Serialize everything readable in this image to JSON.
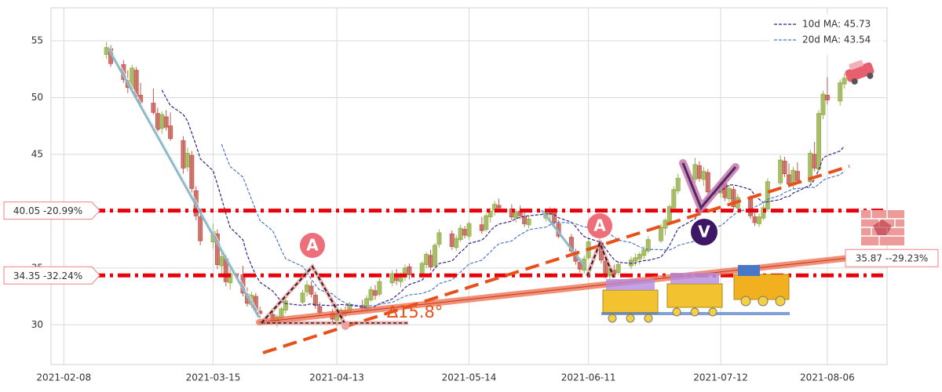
{
  "chart_data": {
    "type": "candlestick",
    "x": [
      "2021-02-18",
      "2021-02-19",
      "2021-02-22",
      "2021-02-23",
      "2021-02-24",
      "2021-02-25",
      "2021-02-26",
      "2021-03-01",
      "2021-03-02",
      "2021-03-03",
      "2021-03-04",
      "2021-03-05",
      "2021-03-08",
      "2021-03-09",
      "2021-03-10",
      "2021-03-11",
      "2021-03-12",
      "2021-03-15",
      "2021-03-16",
      "2021-03-17",
      "2021-03-18",
      "2021-03-19",
      "2021-03-22",
      "2021-03-23",
      "2021-03-24",
      "2021-03-25",
      "2021-03-26",
      "2021-03-29",
      "2021-03-30",
      "2021-03-31",
      "2021-04-01",
      "2021-04-05",
      "2021-04-06",
      "2021-04-07",
      "2021-04-08",
      "2021-04-09",
      "2021-04-12",
      "2021-04-13",
      "2021-04-14",
      "2021-04-15",
      "2021-04-16",
      "2021-04-19",
      "2021-04-20",
      "2021-04-21",
      "2021-04-22",
      "2021-04-23",
      "2021-04-26",
      "2021-04-27",
      "2021-04-28",
      "2021-04-29",
      "2021-04-30",
      "2021-05-03",
      "2021-05-04",
      "2021-05-05",
      "2021-05-06",
      "2021-05-07",
      "2021-05-10",
      "2021-05-11",
      "2021-05-12",
      "2021-05-13",
      "2021-05-14",
      "2021-05-17",
      "2021-05-18",
      "2021-05-19",
      "2021-05-20",
      "2021-05-21",
      "2021-05-24",
      "2021-05-25",
      "2021-05-26",
      "2021-05-27",
      "2021-05-28",
      "2021-06-01",
      "2021-06-02",
      "2021-06-03",
      "2021-06-04",
      "2021-06-07",
      "2021-06-08",
      "2021-06-09",
      "2021-06-10",
      "2021-06-11",
      "2021-06-14",
      "2021-06-15",
      "2021-06-16",
      "2021-06-17",
      "2021-06-18",
      "2021-06-21",
      "2021-06-22",
      "2021-06-23",
      "2021-06-24",
      "2021-06-25",
      "2021-06-28",
      "2021-06-29",
      "2021-06-30",
      "2021-07-01",
      "2021-07-02",
      "2021-07-06",
      "2021-07-07",
      "2021-07-08",
      "2021-07-09",
      "2021-07-12",
      "2021-07-13",
      "2021-07-14",
      "2021-07-15",
      "2021-07-16",
      "2021-07-19",
      "2021-07-20",
      "2021-07-21",
      "2021-07-22",
      "2021-07-23",
      "2021-07-26",
      "2021-07-27",
      "2021-07-28",
      "2021-07-29",
      "2021-07-30",
      "2021-08-02",
      "2021-08-03",
      "2021-08-04",
      "2021-08-05",
      "2021-08-06",
      "2021-08-09",
      "2021-08-10"
    ],
    "open": [
      53.8,
      54.3,
      52.9,
      51.5,
      50.8,
      52.4,
      50.2,
      49.5,
      48.6,
      47.3,
      48.3,
      47.5,
      46.2,
      43.9,
      44.9,
      41.8,
      39.5,
      37.3,
      38.0,
      35.2,
      35.8,
      33.7,
      34.4,
      32.7,
      31.8,
      32.5,
      31.2,
      30.9,
      30.3,
      30.6,
      31.3,
      32.0,
      32.9,
      33.4,
      32.6,
      31.6,
      31.0,
      30.4,
      30.7,
      31.2,
      31.1,
      31.7,
      31.4,
      32.2,
      33.0,
      32.7,
      33.7,
      34.4,
      33.8,
      34.2,
      35.1,
      34.3,
      35.3,
      36.1,
      35.2,
      37.1,
      38.0,
      36.8,
      37.5,
      38.4,
      37.8,
      38.8,
      38.4,
      39.5,
      40.1,
      40.5,
      40.2,
      39.4,
      40.0,
      39.5,
      38.8,
      39.4,
      39.7,
      40.0,
      38.9,
      37.7,
      36.4,
      35.5,
      34.8,
      35.9,
      37.2,
      35.6,
      34.3,
      34.8,
      34.6,
      35.2,
      35.6,
      35.8,
      36.1,
      36.5,
      37.4,
      38.5,
      39.1,
      40.3,
      41.8,
      42.8,
      44.0,
      42.8,
      43.4,
      41.6,
      42.4,
      41.1,
      41.9,
      40.3,
      41.1,
      39.5,
      38.9,
      39.4,
      40.2,
      42.5,
      44.4,
      43.2,
      42.3,
      43.5,
      42.6,
      45.0,
      43.7,
      48.5,
      50.2,
      49.7,
      51.2
    ],
    "high": [
      54.9,
      54.6,
      53.3,
      52.4,
      52.9,
      52.7,
      51.3,
      50.8,
      49.1,
      48.8,
      48.9,
      48.7,
      46.6,
      45.6,
      45.3,
      42.2,
      39.9,
      38.9,
      38.4,
      36.4,
      36.1,
      34.9,
      35.2,
      33.3,
      32.9,
      32.8,
      31.6,
      31.2,
      30.9,
      31.6,
      32.3,
      33.1,
      33.9,
      33.8,
      32.9,
      32.0,
      31.4,
      31.0,
      31.5,
      31.6,
      32.0,
      32.2,
      32.6,
      33.4,
      33.5,
      34.1,
      34.8,
      34.9,
      34.6,
      35.3,
      35.4,
      35.6,
      36.4,
      36.6,
      37.2,
      38.4,
      38.3,
      37.9,
      38.8,
      38.7,
      39.1,
      39.5,
      39.8,
      40.3,
      40.9,
      41.1,
      40.6,
      40.2,
      40.5,
      39.9,
      39.6,
      40.2,
      40.4,
      40.3,
      39.2,
      38.0,
      36.7,
      35.9,
      36.1,
      37.6,
      37.4,
      35.9,
      35.2,
      35.3,
      35.6,
      36.0,
      36.3,
      36.4,
      36.9,
      37.8,
      38.9,
      39.4,
      40.6,
      42.2,
      43.3,
      44.7,
      44.4,
      43.9,
      43.7,
      42.8,
      42.7,
      42.3,
      42.2,
      41.5,
      41.4,
      40.1,
      39.8,
      40.6,
      42.9,
      44.9,
      44.8,
      44.2,
      43.9,
      44.3,
      45.4,
      46.1,
      48.9,
      50.6,
      51.8,
      51.6,
      52.1
    ],
    "low": [
      53.4,
      52.7,
      51.3,
      50.4,
      50.5,
      49.8,
      49.4,
      48.5,
      46.9,
      46.8,
      47.1,
      46.2,
      43.3,
      43.5,
      41.6,
      39.2,
      37.0,
      36.7,
      34.9,
      34.2,
      33.4,
      33.1,
      32.5,
      31.6,
      31.5,
      31.0,
      30.6,
      30.1,
      29.8,
      30.4,
      31.0,
      31.8,
      32.5,
      32.4,
      31.4,
      30.8,
      30.2,
      29.9,
      30.4,
      30.7,
      30.9,
      31.2,
      31.2,
      32.0,
      32.2,
      32.5,
      33.4,
      33.5,
      33.3,
      33.9,
      34.0,
      34.1,
      35.0,
      34.8,
      35.0,
      36.8,
      36.6,
      36.5,
      37.3,
      37.6,
      37.5,
      38.0,
      38.2,
      39.0,
      39.6,
      40.0,
      39.2,
      39.0,
      39.3,
      38.6,
      38.5,
      39.1,
      39.2,
      38.8,
      37.6,
      36.2,
      35.3,
      34.6,
      34.5,
      35.7,
      35.4,
      34.1,
      34.0,
      34.2,
      34.4,
      34.9,
      35.2,
      35.3,
      35.8,
      36.3,
      37.2,
      37.9,
      38.8,
      40.1,
      41.5,
      42.5,
      42.6,
      42.2,
      41.4,
      41.2,
      40.9,
      40.8,
      40.1,
      40.0,
      39.3,
      38.7,
      38.6,
      39.2,
      40.0,
      42.3,
      43.0,
      42.1,
      42.0,
      42.4,
      42.4,
      43.5,
      43.5,
      48.1,
      49.4,
      49.3,
      50.8
    ],
    "close": [
      54.4,
      53.0,
      51.6,
      50.9,
      52.6,
      50.1,
      49.6,
      48.7,
      47.2,
      48.5,
      47.4,
      46.4,
      43.8,
      45.1,
      42.0,
      39.6,
      37.4,
      38.2,
      35.3,
      36.0,
      33.8,
      34.5,
      32.8,
      31.9,
      32.6,
      31.3,
      31.0,
      30.4,
      30.7,
      31.4,
      32.1,
      32.8,
      33.5,
      32.7,
      31.7,
      31.1,
      30.5,
      30.8,
      31.3,
      31.0,
      31.8,
      31.5,
      32.3,
      33.1,
      32.6,
      33.8,
      34.5,
      33.9,
      34.3,
      35.0,
      34.4,
      35.4,
      36.2,
      35.1,
      37.0,
      38.1,
      36.9,
      37.6,
      38.5,
      37.9,
      38.9,
      38.3,
      39.6,
      40.0,
      40.6,
      40.3,
      39.5,
      39.9,
      39.6,
      38.9,
      39.3,
      39.8,
      40.1,
      39.0,
      37.8,
      36.5,
      35.6,
      34.9,
      35.8,
      37.3,
      35.7,
      34.4,
      34.9,
      34.5,
      35.3,
      35.7,
      35.9,
      36.2,
      36.6,
      37.5,
      38.6,
      39.2,
      40.4,
      41.9,
      42.9,
      44.1,
      42.9,
      43.5,
      41.7,
      42.5,
      41.2,
      42.0,
      40.4,
      41.2,
      39.6,
      39.0,
      39.5,
      40.3,
      42.6,
      44.5,
      43.3,
      42.4,
      43.6,
      42.7,
      45.1,
      43.8,
      48.6,
      50.3,
      49.8,
      51.3,
      51.7
    ],
    "up_color": "#98b04e",
    "down_color": "#c25a52",
    "series": [
      {
        "name": "10d MA: 45.73",
        "color": "#3a1f8a",
        "values": [
          null,
          null,
          null,
          null,
          null,
          null,
          null,
          null,
          null,
          50.66,
          49.96,
          49.3,
          48.52,
          47.94,
          46.88,
          45.83,
          44.61,
          43.56,
          42.37,
          41.12,
          39.76,
          38.57,
          37.47,
          36.15,
          35.21,
          34.38,
          33.74,
          32.96,
          32.5,
          32.04,
          31.87,
          31.7,
          31.77,
          31.85,
          31.76,
          31.74,
          31.69,
          31.73,
          31.79,
          31.75,
          31.72,
          31.59,
          31.47,
          31.51,
          31.6,
          31.87,
          32.27,
          32.58,
          32.88,
          33.28,
          33.54,
          33.93,
          34.32,
          34.52,
          34.96,
          35.39,
          35.63,
          36.0,
          36.42,
          36.71,
          37.16,
          37.45,
          37.79,
          38.28,
          38.64,
          38.86,
          39.12,
          39.35,
          39.46,
          39.56,
          39.6,
          39.75,
          39.8,
          39.7,
          39.42,
          39.04,
          38.65,
          38.15,
          37.77,
          37.61,
          37.25,
          36.71,
          36.19,
          35.74,
          35.49,
          35.41,
          35.44,
          35.57,
          35.65,
          35.67,
          35.96,
          36.44,
          36.99,
          37.73,
          38.49,
          39.33,
          40.03,
          40.76,
          41.27,
          41.77,
          42.03,
          42.31,
          42.31,
          42.24,
          41.91,
          41.4,
          41.06,
          40.74,
          40.83,
          41.03,
          41.24,
          41.28,
          41.6,
          41.75,
          42.3,
          42.78,
          43.69,
          44.69,
          44.9,
          45.3,
          45.73
        ]
      },
      {
        "name": "20d MA: 43.54",
        "color": "#4a78c8",
        "values": [
          null,
          null,
          null,
          null,
          null,
          null,
          null,
          null,
          null,
          null,
          null,
          null,
          null,
          null,
          null,
          null,
          null,
          null,
          null,
          45.89,
          44.86,
          43.94,
          43.0,
          42.05,
          41.05,
          40.11,
          39.18,
          38.26,
          37.44,
          36.58,
          35.82,
          35.14,
          34.62,
          34.0,
          33.49,
          33.06,
          32.72,
          32.35,
          32.15,
          31.9,
          31.8,
          31.65,
          31.62,
          31.68,
          31.68,
          31.81,
          31.98,
          32.16,
          32.34,
          32.52,
          32.63,
          32.76,
          32.9,
          33.02,
          33.28,
          33.63,
          33.95,
          34.29,
          34.65,
          35.0,
          35.35,
          35.69,
          36.06,
          36.4,
          36.8,
          37.13,
          37.38,
          37.68,
          37.94,
          38.14,
          38.38,
          38.6,
          38.8,
          38.99,
          39.03,
          38.95,
          38.89,
          38.75,
          38.62,
          38.59,
          38.43,
          38.23,
          38.0,
          37.72,
          37.46,
          37.23,
          37.05,
          36.86,
          36.71,
          36.64,
          36.61,
          36.58,
          36.59,
          36.74,
          36.99,
          37.37,
          37.74,
          38.17,
          38.46,
          38.72,
          39.0,
          39.38,
          39.65,
          39.99,
          40.2,
          40.37,
          40.55,
          40.75,
          41.05,
          41.4,
          41.64,
          41.8,
          41.96,
          42.0,
          42.11,
          42.09,
          42.38,
          42.72,
          42.9,
          43.2,
          43.54
        ]
      }
    ],
    "xlim": [
      "2021-02-05",
      "2021-08-20"
    ],
    "xticks": [
      "2021-02-08",
      "2021-03-15",
      "2021-04-13",
      "2021-05-14",
      "2021-06-11",
      "2021-07-12",
      "2021-08-06"
    ],
    "ylim": [
      26.5,
      57.9
    ],
    "yticks": [
      30,
      35,
      40,
      45,
      50,
      55
    ],
    "grid": true,
    "legend": "upper right",
    "level_color": "#e8000b",
    "levels": [
      {
        "value": 40.05,
        "label": "40.05 -20.99%"
      },
      {
        "value": 34.35,
        "label": "34.35 -32.24%"
      }
    ],
    "trendline": {
      "value": 35.87,
      "label": "35.87 --29.23%",
      "color": "#ee6a4a"
    },
    "annotations": [
      "A",
      "A",
      "V",
      "∆15.8°"
    ]
  }
}
